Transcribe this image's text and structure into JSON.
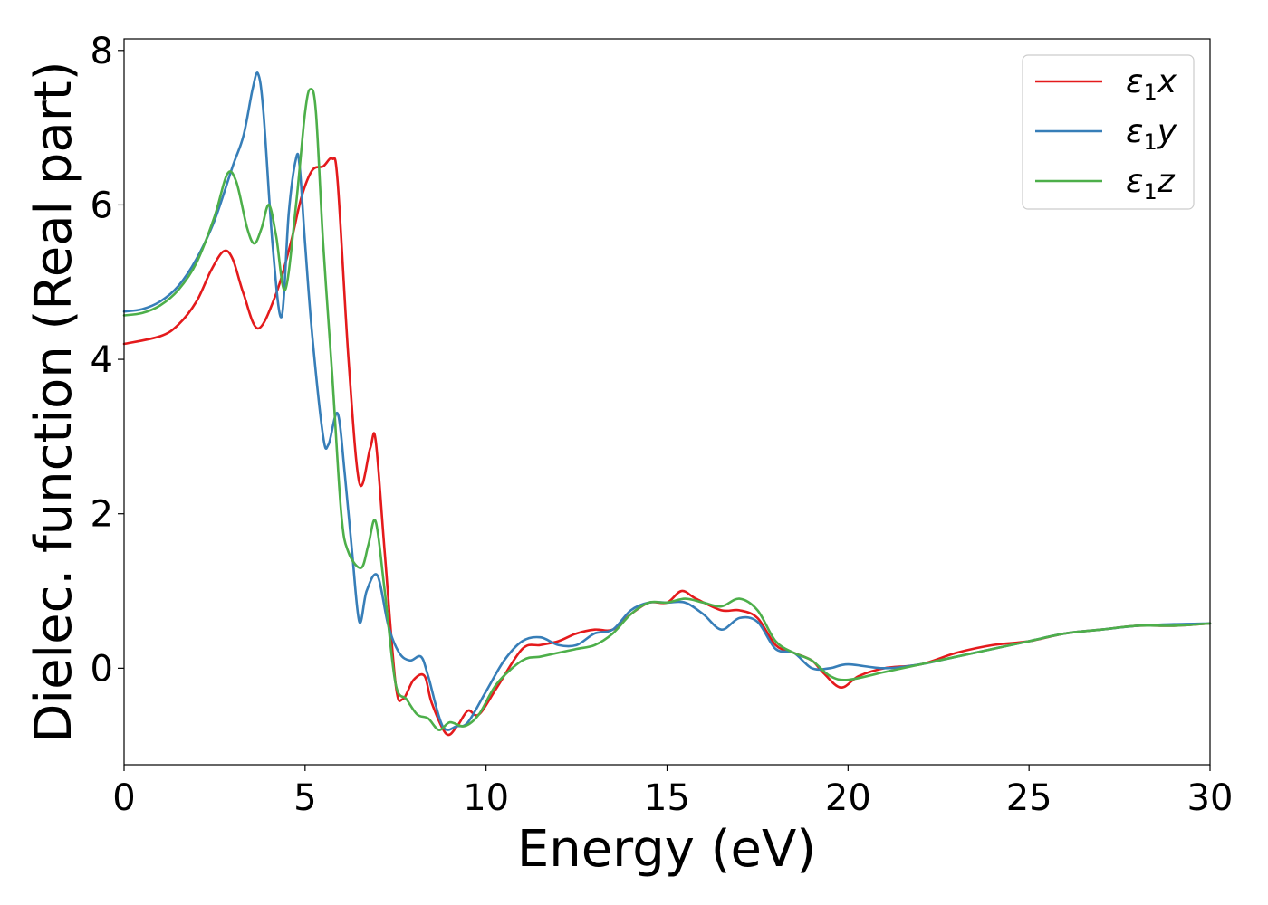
{
  "chart_data": {
    "type": "line",
    "xlabel": "Energy (eV)",
    "ylabel": "Dielec. function (Real part)",
    "xlim": [
      0,
      30
    ],
    "ylim": [
      -1.25,
      8.15
    ],
    "xticks": [
      "0",
      "5",
      "10",
      "15",
      "20",
      "25",
      "30"
    ],
    "yticks": [
      "0",
      "2",
      "4",
      "6",
      "8"
    ],
    "grid": false,
    "legend_position": "top-right",
    "series": [
      {
        "name": "ε₁x",
        "legend": {
          "symbol": "ε",
          "sub": "1",
          "var": "x"
        },
        "color": "#e41a1c",
        "x": [
          0,
          1,
          1.5,
          2,
          2.4,
          2.75,
          3,
          3.3,
          3.7,
          4.2,
          4.6,
          4.9,
          5.2,
          5.5,
          5.75,
          5.9,
          6.2,
          6.5,
          6.8,
          6.95,
          7.2,
          7.5,
          7.7,
          8.0,
          8.3,
          8.5,
          8.9,
          9.2,
          9.5,
          9.8,
          10.3,
          11.0,
          11.5,
          12.0,
          12.5,
          13.0,
          13.5,
          14.0,
          14.5,
          15.0,
          15.4,
          15.8,
          16.5,
          17.0,
          17.5,
          18.0,
          18.5,
          19.0,
          19.3,
          19.8,
          20.3,
          21.0,
          22.0,
          23.0,
          24.0,
          25.0,
          26.0,
          27.0,
          28.0,
          29.0,
          30.0
        ],
        "y": [
          4.2,
          4.3,
          4.45,
          4.75,
          5.15,
          5.4,
          5.3,
          4.85,
          4.4,
          4.85,
          5.5,
          6.1,
          6.45,
          6.5,
          6.6,
          6.3,
          4.0,
          2.4,
          2.85,
          2.95,
          1.5,
          -0.2,
          -0.4,
          -0.15,
          -0.1,
          -0.45,
          -0.85,
          -0.75,
          -0.55,
          -0.6,
          -0.25,
          0.25,
          0.3,
          0.35,
          0.45,
          0.5,
          0.5,
          0.7,
          0.85,
          0.85,
          1.0,
          0.9,
          0.75,
          0.75,
          0.65,
          0.3,
          0.2,
          0.1,
          -0.05,
          -0.25,
          -0.1,
          0.0,
          0.05,
          0.2,
          0.3,
          0.35,
          0.45,
          0.5,
          0.55,
          0.55,
          0.58
        ]
      },
      {
        "name": "ε₁y",
        "legend": {
          "symbol": "ε",
          "sub": "1",
          "var": "y"
        },
        "color": "#377eb8",
        "x": [
          0,
          0.5,
          1.0,
          1.5,
          2.0,
          2.5,
          3.0,
          3.3,
          3.55,
          3.7,
          3.85,
          4.1,
          4.35,
          4.55,
          4.75,
          4.85,
          5.0,
          5.2,
          5.5,
          5.65,
          5.9,
          6.1,
          6.3,
          6.5,
          6.7,
          7.0,
          7.3,
          7.6,
          7.9,
          8.2,
          8.4,
          8.8,
          9.2,
          9.5,
          10.0,
          10.5,
          11.0,
          11.5,
          12.0,
          12.5,
          13.0,
          13.5,
          14.0,
          14.5,
          15.0,
          15.5,
          16.0,
          16.5,
          17.0,
          17.5,
          18.0,
          18.5,
          19.0,
          19.5,
          20.0,
          21.0,
          22.0,
          23.0,
          24.0,
          25.0,
          26.0,
          27.0,
          28.0,
          29.0,
          30.0
        ],
        "y": [
          4.62,
          4.65,
          4.75,
          4.95,
          5.3,
          5.8,
          6.5,
          6.9,
          7.5,
          7.7,
          7.2,
          5.5,
          4.55,
          5.9,
          6.6,
          6.5,
          5.5,
          4.3,
          3.0,
          2.9,
          3.3,
          2.5,
          1.5,
          0.6,
          1.0,
          1.2,
          0.55,
          0.2,
          0.1,
          0.15,
          -0.1,
          -0.75,
          -0.75,
          -0.7,
          -0.3,
          0.1,
          0.35,
          0.4,
          0.3,
          0.3,
          0.45,
          0.5,
          0.75,
          0.85,
          0.85,
          0.85,
          0.7,
          0.5,
          0.65,
          0.6,
          0.25,
          0.2,
          0.0,
          0.0,
          0.05,
          0.0,
          0.05,
          0.15,
          0.25,
          0.35,
          0.45,
          0.5,
          0.55,
          0.57,
          0.58
        ]
      },
      {
        "name": "ε₁z",
        "legend": {
          "symbol": "ε",
          "sub": "1",
          "var": "z"
        },
        "color": "#4daf4a",
        "x": [
          0,
          0.5,
          1.0,
          1.5,
          2.0,
          2.5,
          2.85,
          3.1,
          3.4,
          3.6,
          3.8,
          4.0,
          4.2,
          4.45,
          4.75,
          5.0,
          5.15,
          5.3,
          5.5,
          5.75,
          6.0,
          6.2,
          6.55,
          6.75,
          6.95,
          7.2,
          7.5,
          7.8,
          8.1,
          8.4,
          8.7,
          9.0,
          9.4,
          9.8,
          10.3,
          11.0,
          11.5,
          12.0,
          12.5,
          13.0,
          13.5,
          14.0,
          14.5,
          15.0,
          15.5,
          16.0,
          16.5,
          17.0,
          17.5,
          18.0,
          18.5,
          19.0,
          19.5,
          20.0,
          21.0,
          22.0,
          23.0,
          24.0,
          25.0,
          26.0,
          27.0,
          28.0,
          29.0,
          30.0
        ],
        "y": [
          4.57,
          4.6,
          4.7,
          4.9,
          5.25,
          5.85,
          6.4,
          6.3,
          5.7,
          5.5,
          5.7,
          6.0,
          5.6,
          4.9,
          6.0,
          7.2,
          7.5,
          7.2,
          5.5,
          3.8,
          2.0,
          1.5,
          1.3,
          1.6,
          1.9,
          1.0,
          -0.2,
          -0.4,
          -0.6,
          -0.65,
          -0.8,
          -0.7,
          -0.75,
          -0.6,
          -0.2,
          0.1,
          0.15,
          0.2,
          0.25,
          0.3,
          0.45,
          0.7,
          0.85,
          0.85,
          0.9,
          0.85,
          0.8,
          0.9,
          0.75,
          0.35,
          0.2,
          0.1,
          -0.1,
          -0.15,
          -0.05,
          0.05,
          0.15,
          0.25,
          0.35,
          0.45,
          0.5,
          0.55,
          0.55,
          0.58
        ]
      }
    ]
  }
}
